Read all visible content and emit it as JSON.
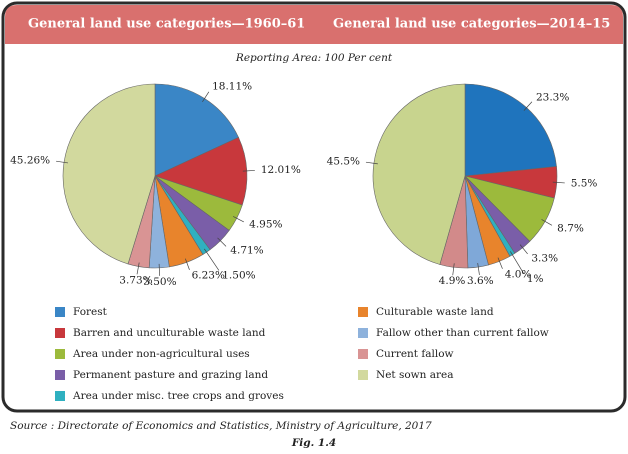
{
  "subtitle": "Reporting Area: 100 Per cent",
  "source": "Source : Directorate of Economics and Statistics, Ministry of Agriculture, 2017",
  "figure": "Fig. 1.4",
  "chart_data": [
    {
      "type": "pie",
      "title": "General land use categories—1960–61",
      "categories": [
        "Forest",
        "Barren and unculturable waste land",
        "Area under non-agricultural uses",
        "Permanent pasture and grazing land",
        "Area under misc. tree crops and groves",
        "Culturable waste land",
        "Fallow other than current fallow",
        "Current fallow",
        "Net sown area"
      ],
      "values": [
        18.11,
        12.01,
        4.95,
        4.71,
        1.5,
        6.23,
        3.5,
        3.73,
        45.26
      ],
      "value_labels": [
        "18.11%",
        "12.01%",
        "4.95%",
        "4.71%",
        "1.50%",
        "6.23%",
        "3.50%",
        "3.73%",
        "45.26%"
      ],
      "colors": [
        "#3a86c6",
        "#c8383c",
        "#9cba3c",
        "#7a5ea8",
        "#2fb0c0",
        "#e8842c",
        "#8eb2dc",
        "#d99494",
        "#d2d99e"
      ]
    },
    {
      "type": "pie",
      "title": "General land use categories—2014–15",
      "categories": [
        "Forest",
        "Barren and unculturable waste land",
        "Area under non-agricultural uses",
        "Permanent pasture and grazing land",
        "Area under misc. tree crops and groves",
        "Culturable waste land",
        "Fallow other than current fallow",
        "Current fallow",
        "Net sown area"
      ],
      "values": [
        23.3,
        5.5,
        8.7,
        3.3,
        1,
        4.0,
        3.6,
        4.9,
        45.5
      ],
      "value_labels": [
        "23.3%",
        "5.5%",
        "8.7%",
        "3.3%",
        "1%",
        "4.0%",
        "3.6%",
        "4.9%",
        "45.5%"
      ],
      "colors": [
        "#1f74bd",
        "#c8383c",
        "#9cba3c",
        "#7a5ea8",
        "#2fb0c0",
        "#e8842c",
        "#7fa8d8",
        "#d28a8a",
        "#c8d48e"
      ]
    }
  ]
}
